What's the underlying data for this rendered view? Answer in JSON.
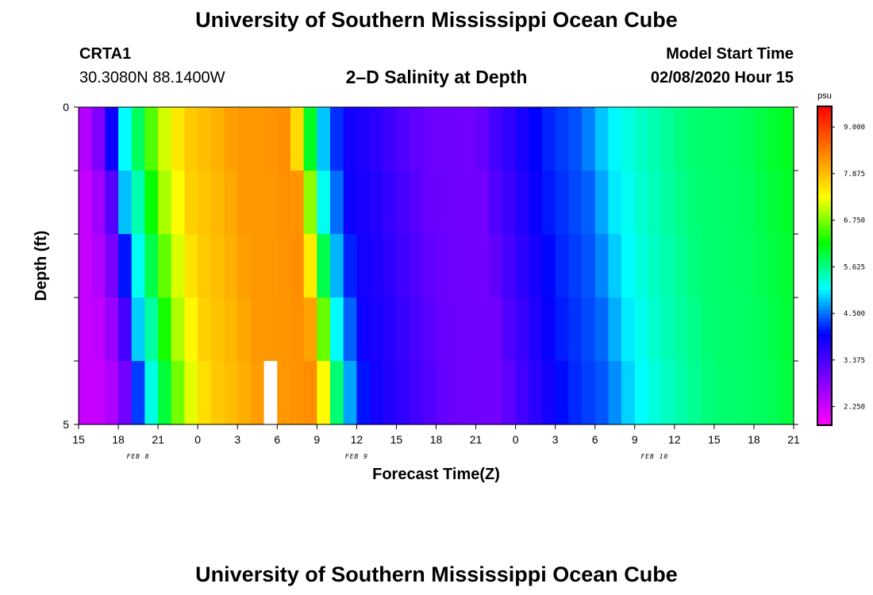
{
  "header": {
    "title": "University of Southern Mississippi Ocean Cube",
    "station_id": "CRTA1",
    "coordinates": "30.3080N 88.1400W",
    "plot_title": "2–D Salinity at Depth",
    "model_start_label": "Model Start Time",
    "model_start_value": "02/08/2020 Hour 15"
  },
  "footer": {
    "title": "University of Southern Mississippi Ocean Cube"
  },
  "colors": {
    "background": "#ffffff",
    "missing": "#ffffff",
    "palette": [
      "#ff00ff",
      "#8000ff",
      "#0000ff",
      "#00ffff",
      "#00ff00",
      "#ffff00",
      "#ff8000",
      "#ff0000"
    ]
  },
  "chart_data": {
    "type": "heatmap",
    "xlabel": "Forecast Time(Z)",
    "ylabel": "Depth (ft)",
    "x_tick_labels": [
      "15",
      "18",
      "21",
      "0",
      "3",
      "6",
      "9",
      "12",
      "15",
      "18",
      "21",
      "0",
      "3",
      "6",
      "9",
      "12",
      "15",
      "18",
      "21"
    ],
    "date_labels": [
      {
        "label": "FEB 8",
        "hour": 4.5
      },
      {
        "label": "FEB 9",
        "hour": 21
      },
      {
        "label": "FEB 10",
        "hour": 43.5
      }
    ],
    "xlim": [
      0,
      54
    ],
    "y_tick_labels": [
      "0",
      "5"
    ],
    "ylim": [
      0,
      5
    ],
    "colorbar": {
      "unit": "psu",
      "ticks": [
        "9.000",
        "7.875",
        "6.750",
        "5.625",
        "4.500",
        "3.375",
        "2.250"
      ],
      "tick_values": [
        9.0,
        7.875,
        6.75,
        5.625,
        4.5,
        3.375,
        2.25
      ],
      "vmin": 1.8,
      "vmax": 9.5
    },
    "time_step_hours": 1,
    "depth_levels": 5,
    "profile": {
      "hours": [
        0,
        1,
        2,
        2.5,
        3,
        4,
        5,
        6,
        7,
        8,
        10,
        12,
        14,
        16,
        17,
        18,
        19,
        20,
        22,
        26,
        30,
        31,
        33,
        35,
        37,
        38,
        39,
        40,
        42,
        46,
        50,
        54
      ],
      "values": [
        2.3,
        2.6,
        3.2,
        3.9,
        4.8,
        5.4,
        6.2,
        6.9,
        7.3,
        7.7,
        7.9,
        8.2,
        8.2,
        8.3,
        6.9,
        5.2,
        4.5,
        3.9,
        3.7,
        3.1,
        3.0,
        3.3,
        3.7,
        4.1,
        4.3,
        4.4,
        4.7,
        5.0,
        5.3,
        5.7,
        5.8,
        6.1
      ]
    },
    "front_shift_hours_per_level": 0.45,
    "missing_cells": [
      {
        "hour": 14,
        "level": 4
      }
    ]
  }
}
